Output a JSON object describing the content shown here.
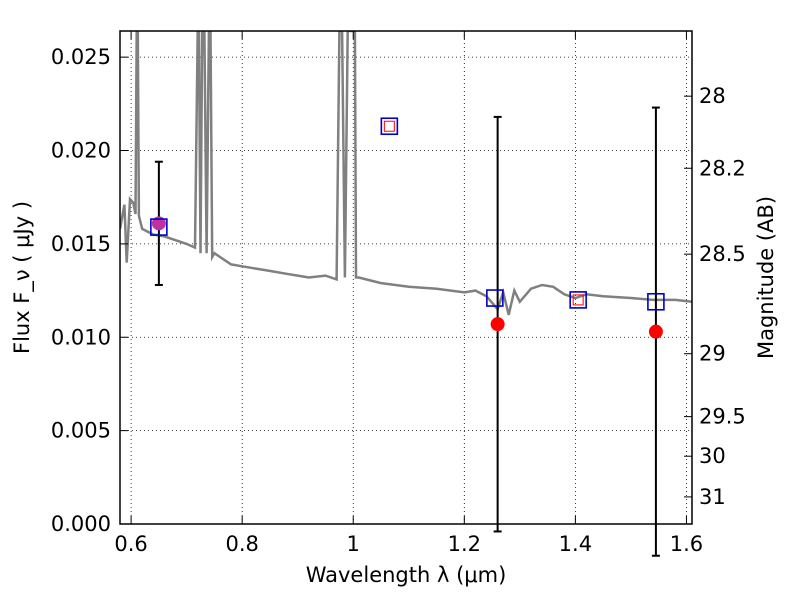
{
  "chart_data": {
    "type": "scatter",
    "title": "",
    "xlabel": "Wavelength  λ (μm)",
    "ylabel": "Flux  F_ν  ( μJy )",
    "y2label": "Magnitude (AB)",
    "xlim": [
      0.58,
      1.61
    ],
    "ylim": [
      0.0,
      0.0264
    ],
    "grid": true,
    "x_ticks": [
      0.6,
      0.8,
      1.0,
      1.2,
      1.4,
      1.6
    ],
    "x_tick_labels": [
      "0.6",
      "0.8",
      "1",
      "1.2",
      "1.4",
      "1.6"
    ],
    "y_ticks": [
      0.0,
      0.005,
      0.01,
      0.015,
      0.02,
      0.025
    ],
    "y_tick_labels": [
      "0.000",
      "0.005",
      "0.010",
      "0.015",
      "0.020",
      "0.025"
    ],
    "y2_ticks": [
      {
        "label": "28",
        "flux": 0.02291
      },
      {
        "label": "28.2",
        "flux": 0.01905
      },
      {
        "label": "28.5",
        "flux": 0.01445
      },
      {
        "label": "29",
        "flux": 0.00912
      },
      {
        "label": "29.5",
        "flux": 0.00575
      },
      {
        "label": "30",
        "flux": 0.00363
      },
      {
        "label": "31",
        "flux": 0.00145
      }
    ],
    "model_spectrum": {
      "color": "#808080",
      "x": [
        0.58,
        0.588,
        0.592,
        0.598,
        0.604,
        0.608,
        0.61,
        0.612,
        0.614,
        0.62,
        0.64,
        0.66,
        0.68,
        0.7,
        0.715,
        0.72,
        0.722,
        0.725,
        0.728,
        0.732,
        0.736,
        0.74,
        0.743,
        0.746,
        0.75,
        0.76,
        0.77,
        0.78,
        0.8,
        0.82,
        0.84,
        0.86,
        0.88,
        0.9,
        0.92,
        0.95,
        0.97,
        0.975,
        0.98,
        0.985,
        0.99,
        0.995,
        1.0,
        1.003,
        1.005,
        1.01,
        1.05,
        1.1,
        1.15,
        1.2,
        1.22,
        1.24,
        1.26,
        1.27,
        1.28,
        1.29,
        1.3,
        1.32,
        1.34,
        1.36,
        1.38,
        1.4,
        1.42,
        1.45,
        1.5,
        1.54,
        1.58,
        1.61
      ],
      "y": [
        0.0158,
        0.0171,
        0.014,
        0.0174,
        0.0172,
        0.0166,
        0.0264,
        0.0264,
        0.0165,
        0.0158,
        0.0155,
        0.0154,
        0.0152,
        0.015,
        0.0148,
        0.0264,
        0.0264,
        0.0145,
        0.0264,
        0.0264,
        0.0145,
        0.0264,
        0.0264,
        0.0143,
        0.0145,
        0.0143,
        0.0141,
        0.0139,
        0.0138,
        0.0137,
        0.0136,
        0.0135,
        0.0134,
        0.0133,
        0.0132,
        0.0133,
        0.0131,
        0.0264,
        0.0264,
        0.0132,
        0.0264,
        0.0264,
        0.0264,
        0.0264,
        0.0132,
        0.0132,
        0.0129,
        0.0127,
        0.0126,
        0.0124,
        0.0125,
        0.0122,
        0.0115,
        0.0124,
        0.0112,
        0.0125,
        0.0119,
        0.0126,
        0.0128,
        0.0127,
        0.0123,
        0.0121,
        0.0123,
        0.0122,
        0.0121,
        0.012,
        0.012,
        0.0119
      ]
    },
    "model_photometry": {
      "marker": "open-square",
      "color": "#0000cc",
      "points": [
        {
          "x": 0.65,
          "y": 0.0159
        },
        {
          "x": 1.065,
          "y": 0.0213
        },
        {
          "x": 1.255,
          "y": 0.0121
        },
        {
          "x": 1.405,
          "y": 0.012
        },
        {
          "x": 1.545,
          "y": 0.0119
        }
      ]
    },
    "observed_photometry": {
      "marker": "filled-circle",
      "color": "#ff0000",
      "points": [
        {
          "x": 0.65,
          "y": 0.0161,
          "err": 0.0033,
          "color": "#c030a0"
        },
        {
          "x": 1.26,
          "y": 0.0107,
          "err": 0.0111,
          "color": "#ff0000"
        },
        {
          "x": 1.545,
          "y": 0.0103,
          "err": 0.012,
          "color": "#ff0000"
        }
      ]
    },
    "upper_limits": {
      "marker": "small-open-square",
      "color": "#ff0000",
      "points": [
        {
          "x": 1.065,
          "y": 0.0213
        },
        {
          "x": 1.405,
          "y": 0.012
        }
      ]
    }
  }
}
